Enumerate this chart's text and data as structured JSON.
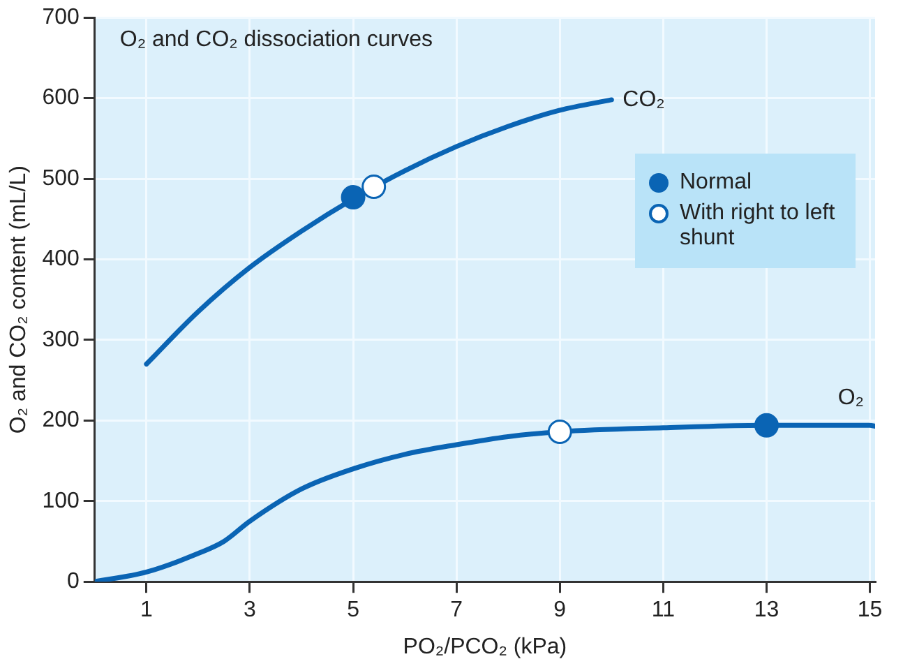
{
  "chart_data": {
    "type": "line",
    "title": "O₂ and CO₂ dissociation curves",
    "xlabel": "PO₂/PCO₂ (kPa)",
    "ylabel": "O₂ and CO₂ content (mL/L)",
    "xlim": [
      0,
      15.1
    ],
    "xticks": [
      1,
      3,
      5,
      7,
      9,
      11,
      13,
      15
    ],
    "ylim": [
      0,
      700
    ],
    "yticks": [
      0,
      100,
      200,
      300,
      400,
      500,
      600,
      700
    ],
    "grid": true,
    "legend": "top right",
    "line_style": "solid",
    "marker": "none",
    "series": [
      {
        "name": "CO₂",
        "color": "#0a64b4",
        "x": [
          1,
          2,
          3,
          4,
          5,
          6,
          7,
          8,
          9,
          10
        ],
        "values": [
          270,
          335,
          390,
          435,
          475,
          510,
          540,
          565,
          585,
          598
        ]
      },
      {
        "name": "O₂",
        "color": "#0a64b4",
        "x": [
          0,
          1,
          2,
          2.5,
          3,
          4,
          5,
          6,
          7,
          8,
          9,
          11,
          13,
          15,
          15.1
        ],
        "values": [
          0,
          12,
          35,
          50,
          75,
          115,
          140,
          158,
          170,
          180,
          186,
          191,
          194,
          194,
          193
        ]
      },
      {
        "name": "Normal",
        "type": "scatter",
        "marker": "circle",
        "color": "#0a64b4",
        "x": [
          5,
          13
        ],
        "values": [
          477,
          194
        ]
      },
      {
        "name": "With right to left shunt",
        "type": "scatter",
        "marker": "circle",
        "color": "#ffffff",
        "x": [
          5.4,
          9
        ],
        "values": [
          490,
          186
        ]
      }
    ]
  }
}
